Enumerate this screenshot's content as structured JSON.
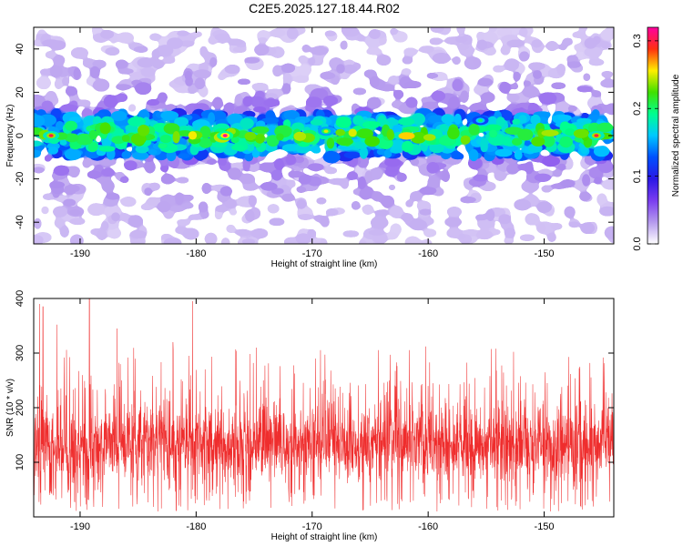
{
  "title": "C2E5.2025.127.18.44.R02",
  "chart_data": [
    {
      "type": "heatmap",
      "xlabel": "Height of straight line (km)",
      "ylabel": "Frequency (Hz)",
      "xlim": [
        -194,
        -144
      ],
      "ylim": [
        -50,
        50
      ],
      "xticks": [
        -190,
        -180,
        -170,
        -160,
        -150
      ],
      "xticklabels": [
        "-190",
        "-180",
        "-170",
        "-160",
        "-150"
      ],
      "yticks": [
        -40,
        -20,
        0,
        20,
        40
      ],
      "yticklabels": [
        "-40",
        "-20",
        "0",
        "20",
        "40"
      ],
      "colorbar": {
        "label": "Normalized spectral amplitude",
        "range": [
          0,
          0.32
        ],
        "ticks": [
          0,
          0.1,
          0.2,
          0.3
        ],
        "ticklabels": [
          "0.0",
          "0.1",
          "0.2",
          "0.3"
        ],
        "colormap": [
          "#ffffff",
          "#b59aee",
          "#7a3df0",
          "#2a18e6",
          "#0050ff",
          "#00c8ff",
          "#00ff90",
          "#40e000",
          "#ffee00",
          "#ff3010",
          "#ff00a0"
        ]
      },
      "description": "Strong band centered near 0 Hz (about ±10 Hz wide) across the whole height range, with peaks up to ~0.3; weak diffuse background elsewhere.",
      "band_center_hz": 0,
      "band_halfwidth_hz": 10,
      "hotspots": [
        {
          "x": -192.5,
          "y": 0,
          "value": 0.3
        },
        {
          "x": -177.5,
          "y": 0,
          "value": 0.32
        },
        {
          "x": -168.8,
          "y": 2,
          "value": 0.25
        },
        {
          "x": -145.5,
          "y": 0,
          "value": 0.3
        },
        {
          "x": -155.5,
          "y": 7,
          "value": 0.2
        }
      ],
      "grid": false
    },
    {
      "type": "line",
      "xlabel": "Height of straight line (km)",
      "ylabel": "SNR (10 * v/v)",
      "xlim": [
        -194,
        -144
      ],
      "ylim": [
        0,
        400
      ],
      "xticks": [
        -190,
        -180,
        -170,
        -160,
        -150
      ],
      "xticklabels": [
        "-190",
        "-180",
        "-170",
        "-160",
        "-150"
      ],
      "yticks": [
        100,
        200,
        300,
        400
      ],
      "yticklabels": [
        "100",
        "200",
        "300",
        "400"
      ],
      "series": [
        {
          "color": "#ef2d2d",
          "description": "Dense noisy SNR trace, baseline about 100-130 with frequent spikes to 250-400; a spike reaches 400 near -189.",
          "typical_range": [
            30,
            220
          ],
          "peaks": [
            {
              "x": -193.5,
              "y": 390
            },
            {
              "x": -193.2,
              "y": 385
            },
            {
              "x": -189.2,
              "y": 400
            },
            {
              "x": -180.3,
              "y": 395
            },
            {
              "x": -186.8,
              "y": 345
            },
            {
              "x": -192.0,
              "y": 352
            },
            {
              "x": -160.2,
              "y": 312
            },
            {
              "x": -174.8,
              "y": 310
            },
            {
              "x": -182.0,
              "y": 320
            }
          ]
        }
      ],
      "grid": false
    }
  ]
}
